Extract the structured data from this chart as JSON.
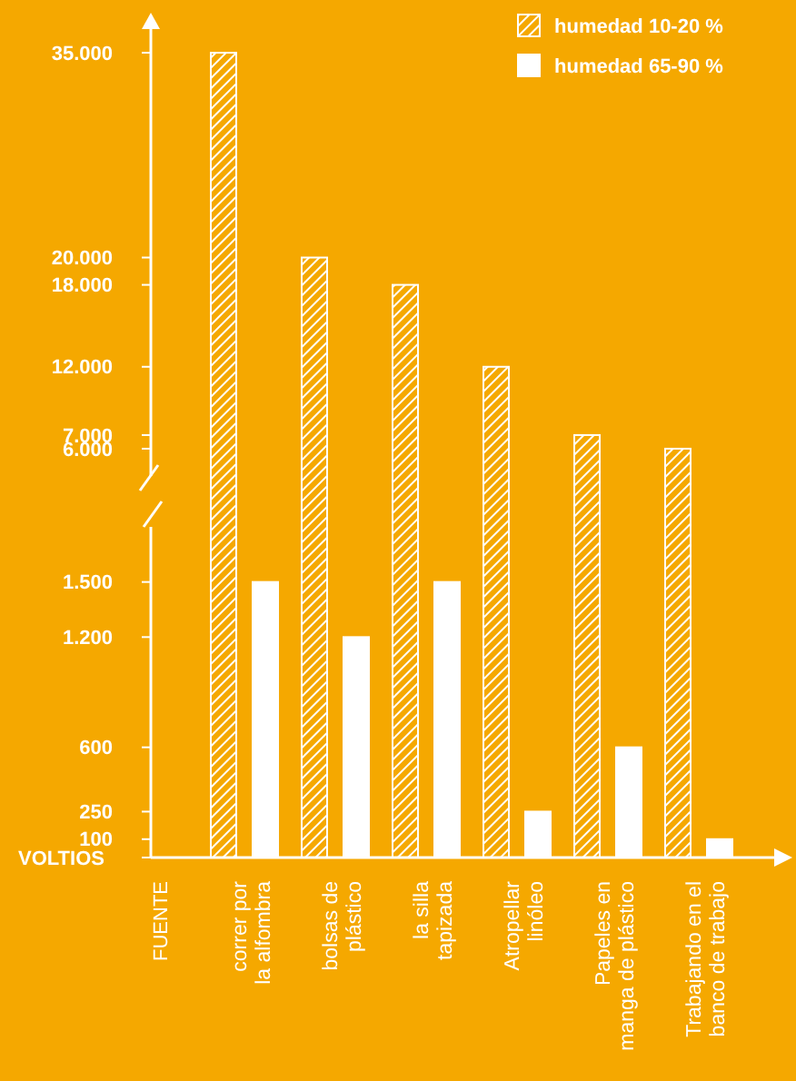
{
  "chart_data": [
    {
      "type": "bar",
      "tick_labels": "y",
      "categories": [
        null,
        null,
        null,
        null,
        null,
        null
      ],
      "series": [
        {
          "name": "humedad 10-20 %",
          "color": "#ffffff",
          "values": [
            35000,
            20000,
            18000,
            12000,
            7000,
            6000
          ]
        }
      ],
      "ylim": [
        4000,
        37000
      ],
      "yticks": [
        {
          "value": 6000,
          "label": "6.000"
        },
        {
          "value": 7000,
          "label": "7.000"
        },
        {
          "value": 12000,
          "label": "12.000"
        },
        {
          "value": 18000,
          "label": "18.000"
        },
        {
          "value": 20000,
          "label": "20.000"
        },
        {
          "value": 35000,
          "label": "35.000"
        }
      ],
      "legend": "top right"
    },
    {
      "type": "bar",
      "annotations": [
        "FUENTE"
      ],
      "ylabel": "VOLTIOS",
      "categories": [
        "correr por\nla alfombra",
        "bolsas de\nplástico",
        "la silla\ntapizada",
        "Atropellar\nlinóleo",
        "Papeles en\nmanga de plástico",
        "Trabajando en el\nbanco de trabajo"
      ],
      "series": [
        {
          "name": "humedad 65-90 %",
          "color": "#ffffff",
          "values": [
            1500,
            1200,
            1500,
            250,
            600,
            100
          ]
        }
      ],
      "ylim": [
        0,
        1800
      ],
      "yticks": [
        {
          "value": 0,
          "label": null
        },
        {
          "value": 100,
          "label": "100"
        },
        {
          "value": 250,
          "label": "250"
        },
        {
          "value": 600,
          "label": "600"
        },
        {
          "value": 1200,
          "label": "1.200"
        },
        {
          "value": 1500,
          "label": "1.500"
        }
      ],
      "legend": "top right"
    }
  ]
}
